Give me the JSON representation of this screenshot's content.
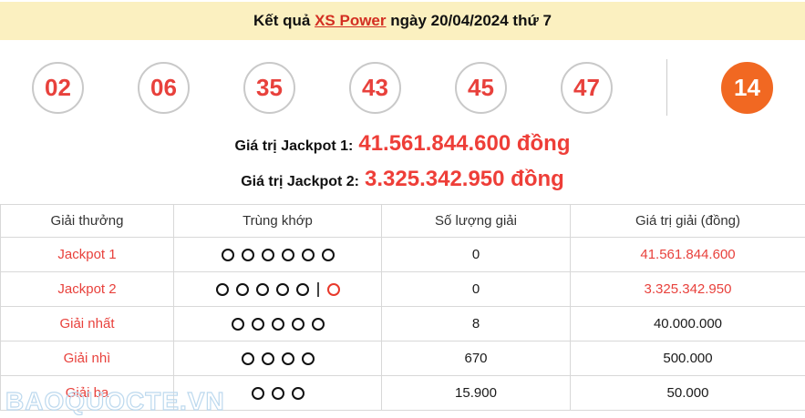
{
  "header": {
    "title_prefix": "Kết quả ",
    "title_link": "XS Power",
    "title_suffix": " ngày 20/04/2024 thứ 7"
  },
  "draw": {
    "main_numbers": [
      "02",
      "06",
      "35",
      "43",
      "45",
      "47"
    ],
    "power_number": "14"
  },
  "jackpots": [
    {
      "label": "Giá trị Jackpot 1:",
      "value": "41.561.844.600 đồng"
    },
    {
      "label": "Giá trị Jackpot 2:",
      "value": "3.325.342.950 đồng"
    }
  ],
  "table": {
    "headers": [
      "Giải thưởng",
      "Trùng khớp",
      "Số lượng giải",
      "Giá trị giải (đồng)"
    ],
    "rows": [
      {
        "prize": "Jackpot 1",
        "match_main": 6,
        "match_power": 0,
        "count": "0",
        "value": "41.561.844.600",
        "value_color": "red"
      },
      {
        "prize": "Jackpot 2",
        "match_main": 5,
        "match_power": 1,
        "count": "0",
        "value": "3.325.342.950",
        "value_color": "red"
      },
      {
        "prize": "Giải nhất",
        "match_main": 5,
        "match_power": 0,
        "count": "8",
        "value": "40.000.000",
        "value_color": "black"
      },
      {
        "prize": "Giải nhì",
        "match_main": 4,
        "match_power": 0,
        "count": "670",
        "value": "500.000",
        "value_color": "black"
      },
      {
        "prize": "Giải ba",
        "match_main": 3,
        "match_power": 0,
        "count": "15.900",
        "value": "50.000",
        "value_color": "black"
      }
    ]
  },
  "watermark": "BAOQUOCTE.VN",
  "colors": {
    "header_bg": "#fbf0c0",
    "accent_red": "#e8413c",
    "jackpot_value_red": "#ee3e38",
    "power_orange": "#f16822",
    "link_red": "#d32f22",
    "border_gray": "#d8d8d8",
    "watermark_blue": "#bdd9ee"
  }
}
